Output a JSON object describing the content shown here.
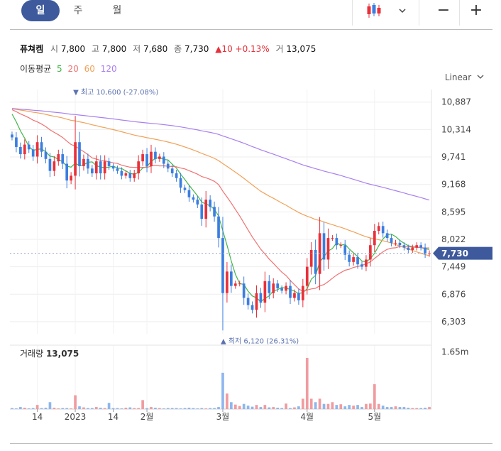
{
  "tabs": [
    {
      "label": "일",
      "active": true
    },
    {
      "label": "주",
      "active": false
    },
    {
      "label": "월",
      "active": false
    }
  ],
  "controls": {
    "chart_type_icon": "candlestick-icon",
    "dropdown_icon": "chevron-down-icon",
    "zoom_out_label": "−",
    "zoom_in_label": "+"
  },
  "quote": {
    "name": "퓨쳐켐",
    "open_label": "시",
    "open": "7,800",
    "high_label": "고",
    "high": "7,800",
    "low_label": "저",
    "low": "7,680",
    "close_label": "종",
    "close": "7,730",
    "change": "▲10 +0.13%",
    "volume_label": "거",
    "volume": "13,075"
  },
  "moving_average": {
    "label": "이동평균",
    "periods": [
      {
        "label": "5",
        "color": "#42b549"
      },
      {
        "label": "20",
        "color": "#f07272"
      },
      {
        "label": "60",
        "color": "#f2a057"
      },
      {
        "label": "120",
        "color": "#a77ff0"
      }
    ]
  },
  "scale_mode": "Linear",
  "colors": {
    "up": "#e8303a",
    "down": "#3b7ee0",
    "current_badge": "#3e5a9c",
    "annotation": "#5b72b0"
  },
  "chart_data": {
    "type": "candlestick",
    "y_ticks": [
      "10,887",
      "10,314",
      "9,741",
      "9,168",
      "8,595",
      "8,022",
      "7,449",
      "6,876",
      "6,303"
    ],
    "ylim": [
      6050,
      11150
    ],
    "current_price": 7730,
    "current_price_label": "7,730",
    "x_tick_labels": [
      {
        "label": "14",
        "index": 6
      },
      {
        "label": "2023",
        "index": 15
      },
      {
        "label": "14",
        "index": 24
      },
      {
        "label": "2월",
        "index": 32
      },
      {
        "label": "3월",
        "index": 50
      },
      {
        "label": "4월",
        "index": 70
      },
      {
        "label": "5월",
        "index": 86
      }
    ],
    "annotations": {
      "high": {
        "text": "▼ 최고 10,600 (-27.08%)",
        "index": 15,
        "value": 10600
      },
      "low": {
        "text": "▲ 최저 6,120 (26.31%)",
        "index": 50,
        "value": 6120
      }
    },
    "closes": [
      10150,
      9950,
      9800,
      10000,
      9900,
      9750,
      10050,
      9850,
      9700,
      9450,
      9650,
      9800,
      9600,
      9250,
      9350,
      10050,
      9550,
      9700,
      9500,
      9400,
      9650,
      9400,
      9650,
      9550,
      9500,
      9450,
      9350,
      9400,
      9300,
      9400,
      9650,
      9800,
      9550,
      9850,
      9700,
      9750,
      9600,
      9500,
      9400,
      9300,
      9100,
      9050,
      8900,
      8850,
      8750,
      8450,
      8850,
      8700,
      8500,
      8050,
      6900,
      7350,
      7050,
      7100,
      7100,
      6800,
      6650,
      6550,
      6900,
      6700,
      7150,
      6900,
      7100,
      7000,
      6950,
      7050,
      6800,
      6900,
      6750,
      7050,
      7450,
      7800,
      7300,
      8150,
      7600,
      8050,
      8050,
      7900,
      7900,
      7700,
      7550,
      7650,
      7500,
      7450,
      7600,
      7900,
      8200,
      8300,
      8150,
      8050,
      7950,
      7950,
      7900,
      7850,
      7800,
      7850,
      7900,
      7850,
      7720,
      7730
    ],
    "volume_max_label": "1.65m",
    "volume_label": "거래량",
    "volume_value": "13,075",
    "volume_max": 1650000,
    "volumes": [
      30000,
      20000,
      60000,
      40000,
      20000,
      30000,
      120000,
      30000,
      40000,
      200000,
      40000,
      20000,
      30000,
      30000,
      20000,
      400000,
      80000,
      50000,
      30000,
      30000,
      60000,
      40000,
      30000,
      180000,
      30000,
      30000,
      20000,
      40000,
      50000,
      30000,
      30000,
      260000,
      30000,
      60000,
      40000,
      30000,
      20000,
      30000,
      30000,
      30000,
      20000,
      30000,
      40000,
      30000,
      20000,
      30000,
      20000,
      30000,
      30000,
      60000,
      1050000,
      450000,
      200000,
      130000,
      90000,
      150000,
      100000,
      70000,
      120000,
      60000,
      120000,
      50000,
      60000,
      40000,
      30000,
      160000,
      30000,
      50000,
      80000,
      300000,
      1480000,
      300000,
      200000,
      300000,
      150000,
      150000,
      200000,
      120000,
      140000,
      80000,
      120000,
      100000,
      120000,
      60000,
      150000,
      160000,
      720000,
      150000,
      100000,
      60000,
      60000,
      80000,
      60000,
      60000,
      40000,
      30000,
      30000,
      30000,
      40000,
      60000
    ]
  }
}
